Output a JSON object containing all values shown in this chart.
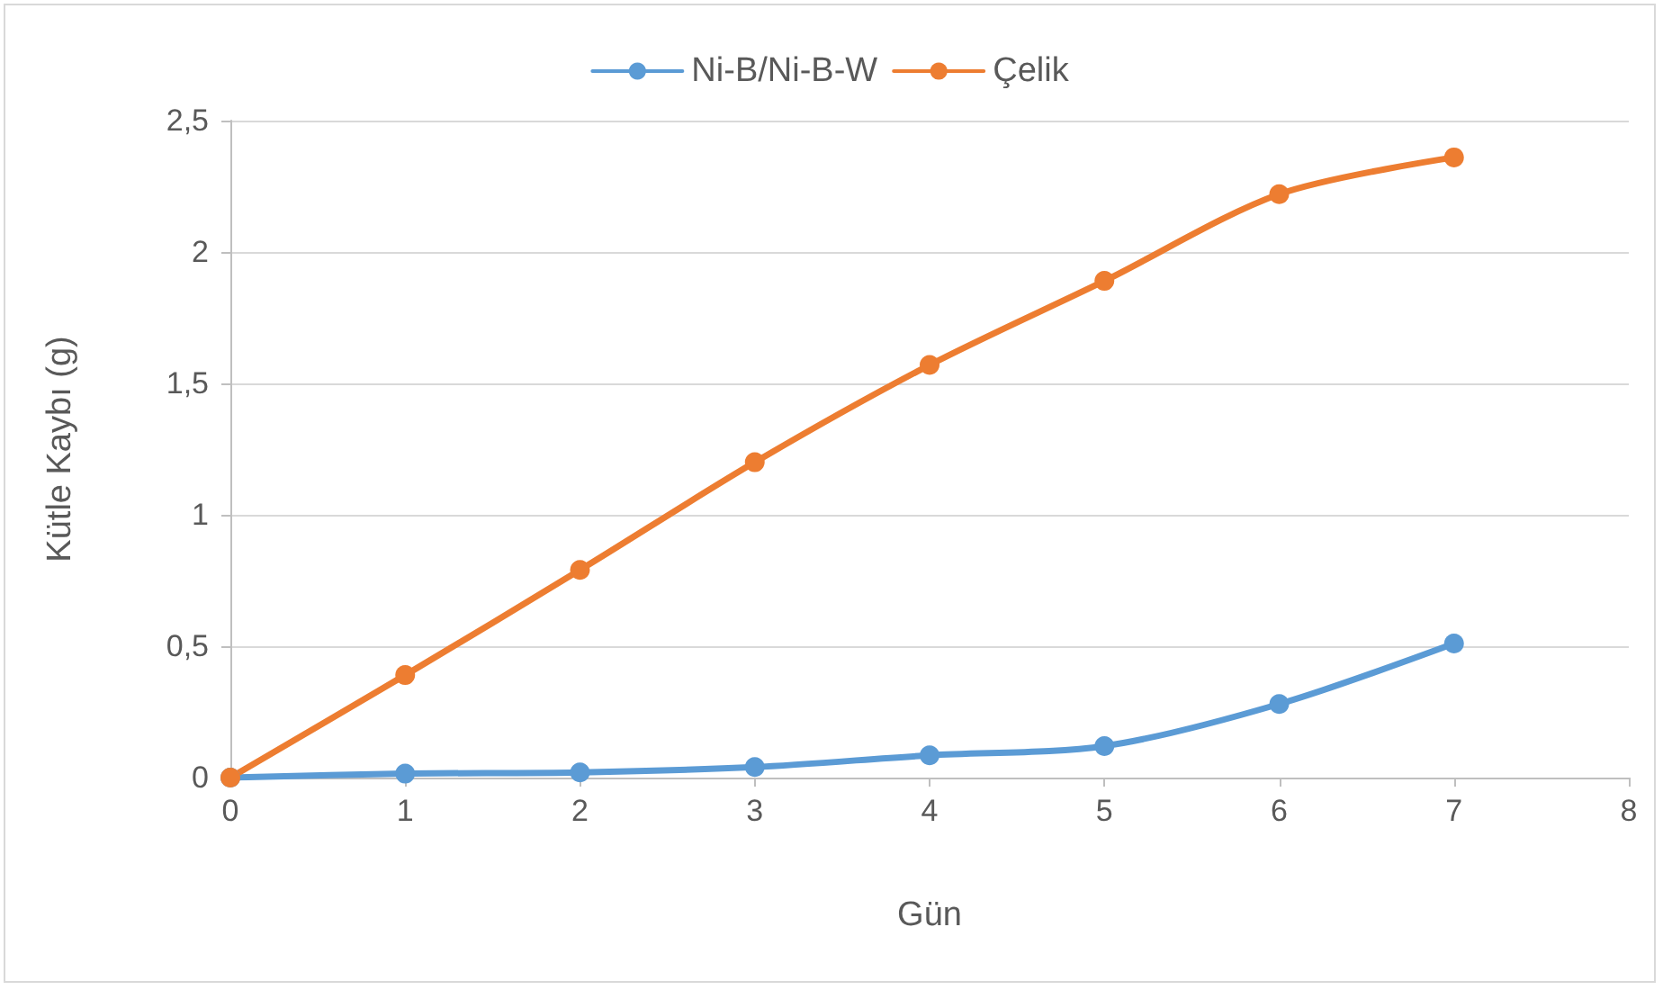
{
  "chart_data": {
    "type": "line",
    "xlabel": "Gün",
    "ylabel": "Kütle Kaybı (g)",
    "x": [
      0,
      1,
      2,
      3,
      4,
      5,
      6,
      7
    ],
    "series": [
      {
        "name": "Ni-B/Ni-B-W",
        "color": "#5b9bd5",
        "values": [
          0,
          0.015,
          0.02,
          0.04,
          0.085,
          0.12,
          0.28,
          0.51
        ]
      },
      {
        "name": "Çelik",
        "color": "#ed7d31",
        "values": [
          0,
          0.39,
          0.79,
          1.2,
          1.57,
          1.89,
          2.22,
          2.36
        ]
      }
    ],
    "xlim": [
      0,
      8
    ],
    "xticks": [
      0,
      1,
      2,
      3,
      4,
      5,
      6,
      7,
      8
    ],
    "ylim": [
      0,
      2.5
    ],
    "yticks": [
      {
        "value": 0,
        "label": "0"
      },
      {
        "value": 0.5,
        "label": "0,5"
      },
      {
        "value": 1,
        "label": "1"
      },
      {
        "value": 1.5,
        "label": "1,5"
      },
      {
        "value": 2,
        "label": "2"
      },
      {
        "value": 2.5,
        "label": "2,5"
      }
    ],
    "grid": "y",
    "legend": "top",
    "marker": "circle",
    "line_style": "solid"
  }
}
